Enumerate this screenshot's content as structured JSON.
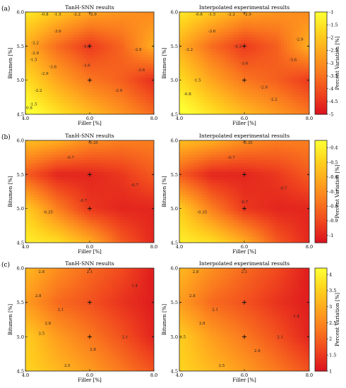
{
  "figure": {
    "x_axis": {
      "label": "Filler [%]",
      "ticks": [
        4.0,
        6.0,
        8.0
      ],
      "range": [
        4.0,
        8.0
      ]
    },
    "y_axis": {
      "label": "Bitumen [%]",
      "ticks": [
        4.5,
        5.0,
        5.5,
        6.0
      ],
      "range": [
        4.5,
        6.0
      ]
    },
    "colorbar_label": "Percent Variation [%]",
    "colormap": [
      "#ffff33",
      "#ffd21e",
      "#ffa51e",
      "#fa781e",
      "#f0461e",
      "#dc141e"
    ],
    "experimental_points": [
      [
        4.0,
        5.5
      ],
      [
        6.0,
        5.0
      ],
      [
        6.0,
        5.5
      ],
      [
        6.0,
        6.0
      ],
      [
        8.0,
        5.0
      ],
      [
        8.0,
        5.5
      ]
    ]
  },
  "chart_data": [
    {
      "type": "heatmap",
      "panel": "(a)",
      "title": "TanH-SNN results",
      "xlabel": "Filler [%]",
      "ylabel": "Bitumen [%]",
      "xlim": [
        4.0,
        8.0
      ],
      "ylim": [
        4.5,
        6.0
      ],
      "x": [
        4.0,
        5.0,
        6.0,
        7.0,
        8.0
      ],
      "y": [
        4.5,
        5.0,
        5.5,
        6.0
      ],
      "z": [
        [
          -0.8,
          -1.5,
          -2.2,
          -2.9,
          -3.6
        ],
        [
          -1.6,
          -2.6,
          -3.4,
          -3.8,
          -4.6
        ],
        [
          -2.4,
          -3.6,
          -4.4,
          -3.7,
          -2.4
        ],
        [
          -1.4,
          -2.0,
          -2.6,
          -2.9,
          -3.1
        ]
      ],
      "contour_labels": [
        {
          "text": "-0.8",
          "x": 4.6,
          "y": 5.97
        },
        {
          "text": "-1.5",
          "x": 5.0,
          "y": 5.97
        },
        {
          "text": "-2.2",
          "x": 5.6,
          "y": 5.97
        },
        {
          "text": "-2.9",
          "x": 6.1,
          "y": 5.97
        },
        {
          "text": "-3.6",
          "x": 5.0,
          "y": 5.72
        },
        {
          "text": "-2.2",
          "x": 4.3,
          "y": 5.55
        },
        {
          "text": "-1.5",
          "x": 4.25,
          "y": 5.3
        },
        {
          "text": "-2.9",
          "x": 4.3,
          "y": 5.4
        },
        {
          "text": "-4.3",
          "x": 5.9,
          "y": 5.5
        },
        {
          "text": "-3.6",
          "x": 4.85,
          "y": 5.2
        },
        {
          "text": "-2.9",
          "x": 4.6,
          "y": 5.1
        },
        {
          "text": "-3.6",
          "x": 5.9,
          "y": 5.22
        },
        {
          "text": "-2.2",
          "x": 4.4,
          "y": 4.85
        },
        {
          "text": "-1.5",
          "x": 4.25,
          "y": 4.65
        },
        {
          "text": "-0.8",
          "x": 4.1,
          "y": 4.6
        },
        {
          "text": "-2.9",
          "x": 6.9,
          "y": 4.85
        },
        {
          "text": "-2.9",
          "x": 7.5,
          "y": 5.45
        },
        {
          "text": "-3.6",
          "x": 7.6,
          "y": 5.15
        }
      ],
      "colorbar": {
        "ticks": [
          -1,
          -1.5,
          -2,
          -2.5,
          -3,
          -3.5,
          -4,
          -4.5,
          -5
        ],
        "range": [
          -5,
          -1
        ]
      }
    },
    {
      "type": "heatmap",
      "panel": "(a)",
      "title": "Interpolated experimental results",
      "xlabel": "Filler [%]",
      "ylabel": "Bitumen [%]",
      "xlim": [
        4.0,
        8.0
      ],
      "ylim": [
        4.5,
        6.0
      ],
      "x": [
        4.0,
        5.0,
        6.0,
        7.0,
        8.0
      ],
      "y": [
        4.5,
        5.0,
        5.5,
        6.0
      ],
      "z": [
        [
          -0.8,
          -1.5,
          -2.2,
          -2.8,
          -3.4
        ],
        [
          -1.6,
          -2.6,
          -3.4,
          -3.8,
          -4.4
        ],
        [
          -2.4,
          -3.6,
          -4.4,
          -3.8,
          -2.4
        ],
        [
          -1.4,
          -2.0,
          -2.6,
          -2.9,
          -3.1
        ]
      ],
      "contour_labels": [
        {
          "text": "-0.8",
          "x": 4.6,
          "y": 5.97
        },
        {
          "text": "-1.5",
          "x": 5.0,
          "y": 5.97
        },
        {
          "text": "-2.2",
          "x": 5.6,
          "y": 5.97
        },
        {
          "text": "-2.9",
          "x": 6.1,
          "y": 5.97
        },
        {
          "text": "-3.6",
          "x": 5.0,
          "y": 5.72
        },
        {
          "text": "-2.2",
          "x": 4.3,
          "y": 5.45
        },
        {
          "text": "-4.3",
          "x": 5.8,
          "y": 5.5
        },
        {
          "text": "-3.6",
          "x": 6.0,
          "y": 5.25
        },
        {
          "text": "-1.5",
          "x": 4.55,
          "y": 5.0
        },
        {
          "text": "-2.9",
          "x": 6.6,
          "y": 4.9
        },
        {
          "text": "-2.2",
          "x": 6.9,
          "y": 4.72
        },
        {
          "text": "-0.8",
          "x": 4.25,
          "y": 4.8
        },
        {
          "text": "-3.6",
          "x": 7.5,
          "y": 5.3
        },
        {
          "text": "-2.9",
          "x": 7.7,
          "y": 5.6
        }
      ],
      "colorbar": null
    },
    {
      "type": "heatmap",
      "panel": "(b)",
      "title": "TanH-SNN results",
      "xlabel": "Filler [%]",
      "ylabel": "Bitumen [%]",
      "xlim": [
        4.0,
        8.0
      ],
      "ylim": [
        4.5,
        6.0
      ],
      "x": [
        4.0,
        5.0,
        6.0,
        7.0,
        8.0
      ],
      "y": [
        4.5,
        5.0,
        5.5,
        6.0
      ],
      "z": [
        [
          -0.4,
          -0.45,
          -0.6,
          -0.85,
          -1.0
        ],
        [
          -0.5,
          -0.75,
          -0.95,
          -1.0,
          -1.0
        ],
        [
          -0.85,
          -1.0,
          -1.0,
          -0.95,
          -0.85
        ],
        [
          -0.55,
          -0.6,
          -0.7,
          -0.75,
          -0.75
        ]
      ],
      "contour_labels": [
        {
          "text": "-0.35",
          "x": 6.1,
          "y": 5.97
        },
        {
          "text": "-0.7",
          "x": 5.4,
          "y": 5.75
        },
        {
          "text": "-0.7",
          "x": 5.8,
          "y": 5.12
        },
        {
          "text": "-0.7",
          "x": 7.4,
          "y": 5.35
        },
        {
          "text": "-0.35",
          "x": 4.7,
          "y": 4.95
        }
      ],
      "colorbar": {
        "ticks": [
          -0.4,
          -0.5,
          -0.6,
          -0.7,
          -0.8,
          -0.9,
          -1
        ],
        "range": [
          -1.05,
          -0.35
        ]
      }
    },
    {
      "type": "heatmap",
      "panel": "(b)",
      "title": "Interpolated experimental results",
      "xlabel": "Filler [%]",
      "ylabel": "Bitumen [%]",
      "xlim": [
        4.0,
        8.0
      ],
      "ylim": [
        4.5,
        6.0
      ],
      "x": [
        4.0,
        5.0,
        6.0,
        7.0,
        8.0
      ],
      "y": [
        4.5,
        5.0,
        5.5,
        6.0
      ],
      "z": [
        [
          -0.4,
          -0.45,
          -0.6,
          -0.85,
          -1.0
        ],
        [
          -0.5,
          -0.75,
          -0.95,
          -1.0,
          -1.0
        ],
        [
          -0.85,
          -1.0,
          -1.0,
          -0.95,
          -0.85
        ],
        [
          -0.55,
          -0.6,
          -0.7,
          -0.75,
          -0.75
        ]
      ],
      "contour_labels": [
        {
          "text": "-0.35",
          "x": 6.1,
          "y": 5.97
        },
        {
          "text": "-0.7",
          "x": 5.6,
          "y": 5.75
        },
        {
          "text": "-0.7",
          "x": 6.0,
          "y": 5.1
        },
        {
          "text": "-0.7",
          "x": 7.2,
          "y": 5.3
        },
        {
          "text": "-0.35",
          "x": 4.7,
          "y": 4.95
        }
      ],
      "colorbar": null
    },
    {
      "type": "heatmap",
      "panel": "(c)",
      "title": "TanH-SNN results",
      "xlabel": "Filler [%]",
      "ylabel": "Bitumen [%]",
      "xlim": [
        4.0,
        8.0
      ],
      "ylim": [
        4.5,
        6.0
      ],
      "x": [
        4.0,
        5.0,
        6.0,
        7.0,
        8.0
      ],
      "y": [
        4.5,
        5.0,
        5.5,
        6.0
      ],
      "z": [
        [
          3.6,
          3.2,
          2.8,
          2.3,
          1.8
        ],
        [
          3.5,
          2.8,
          2.3,
          1.8,
          1.2
        ],
        [
          2.8,
          2.1,
          1.8,
          1.4,
          1.1
        ],
        [
          3.2,
          2.6,
          2.1,
          1.7,
          1.1
        ]
      ],
      "contour_labels": [
        {
          "text": "2.8",
          "x": 4.5,
          "y": 5.95
        },
        {
          "text": "2.1",
          "x": 6.0,
          "y": 5.95
        },
        {
          "text": "1.4",
          "x": 7.4,
          "y": 5.75
        },
        {
          "text": "2.8",
          "x": 4.4,
          "y": 5.6
        },
        {
          "text": "2.1",
          "x": 5.1,
          "y": 5.4
        },
        {
          "text": "2.8",
          "x": 4.7,
          "y": 5.2
        },
        {
          "text": "3.5",
          "x": 4.5,
          "y": 5.05
        },
        {
          "text": "2.8",
          "x": 6.1,
          "y": 4.82
        },
        {
          "text": "3.5",
          "x": 5.3,
          "y": 4.58
        },
        {
          "text": "2.1",
          "x": 7.1,
          "y": 5.0
        }
      ],
      "colorbar": {
        "ticks": [
          4,
          3.5,
          3,
          2.5,
          2,
          1.5,
          1
        ],
        "range": [
          1,
          4.2
        ]
      }
    },
    {
      "type": "heatmap",
      "panel": "(c)",
      "title": "Interpolated experimental results",
      "xlabel": "Filler [%]",
      "ylabel": "Bitumen [%]",
      "xlim": [
        4.0,
        8.0
      ],
      "ylim": [
        4.5,
        6.0
      ],
      "x": [
        4.0,
        5.0,
        6.0,
        7.0,
        8.0
      ],
      "y": [
        4.5,
        5.0,
        5.5,
        6.0
      ],
      "z": [
        [
          3.6,
          3.2,
          2.8,
          2.3,
          1.8
        ],
        [
          3.5,
          2.8,
          2.3,
          1.8,
          1.2
        ],
        [
          2.8,
          2.1,
          1.8,
          1.4,
          1.1
        ],
        [
          3.2,
          2.6,
          2.1,
          1.7,
          1.1
        ]
      ],
      "contour_labels": [
        {
          "text": "2.8",
          "x": 4.5,
          "y": 5.95
        },
        {
          "text": "2.1",
          "x": 6.0,
          "y": 5.95
        },
        {
          "text": "2.8",
          "x": 4.4,
          "y": 5.6
        },
        {
          "text": "2.1",
          "x": 5.1,
          "y": 5.4
        },
        {
          "text": "2.8",
          "x": 4.7,
          "y": 5.2
        },
        {
          "text": "3.5",
          "x": 4.1,
          "y": 5.0
        },
        {
          "text": "2.8",
          "x": 6.4,
          "y": 4.8
        },
        {
          "text": "3.5",
          "x": 5.3,
          "y": 4.58
        },
        {
          "text": "2.1",
          "x": 7.1,
          "y": 5.0
        },
        {
          "text": "1.4",
          "x": 7.6,
          "y": 5.3
        }
      ],
      "colorbar": null
    }
  ]
}
